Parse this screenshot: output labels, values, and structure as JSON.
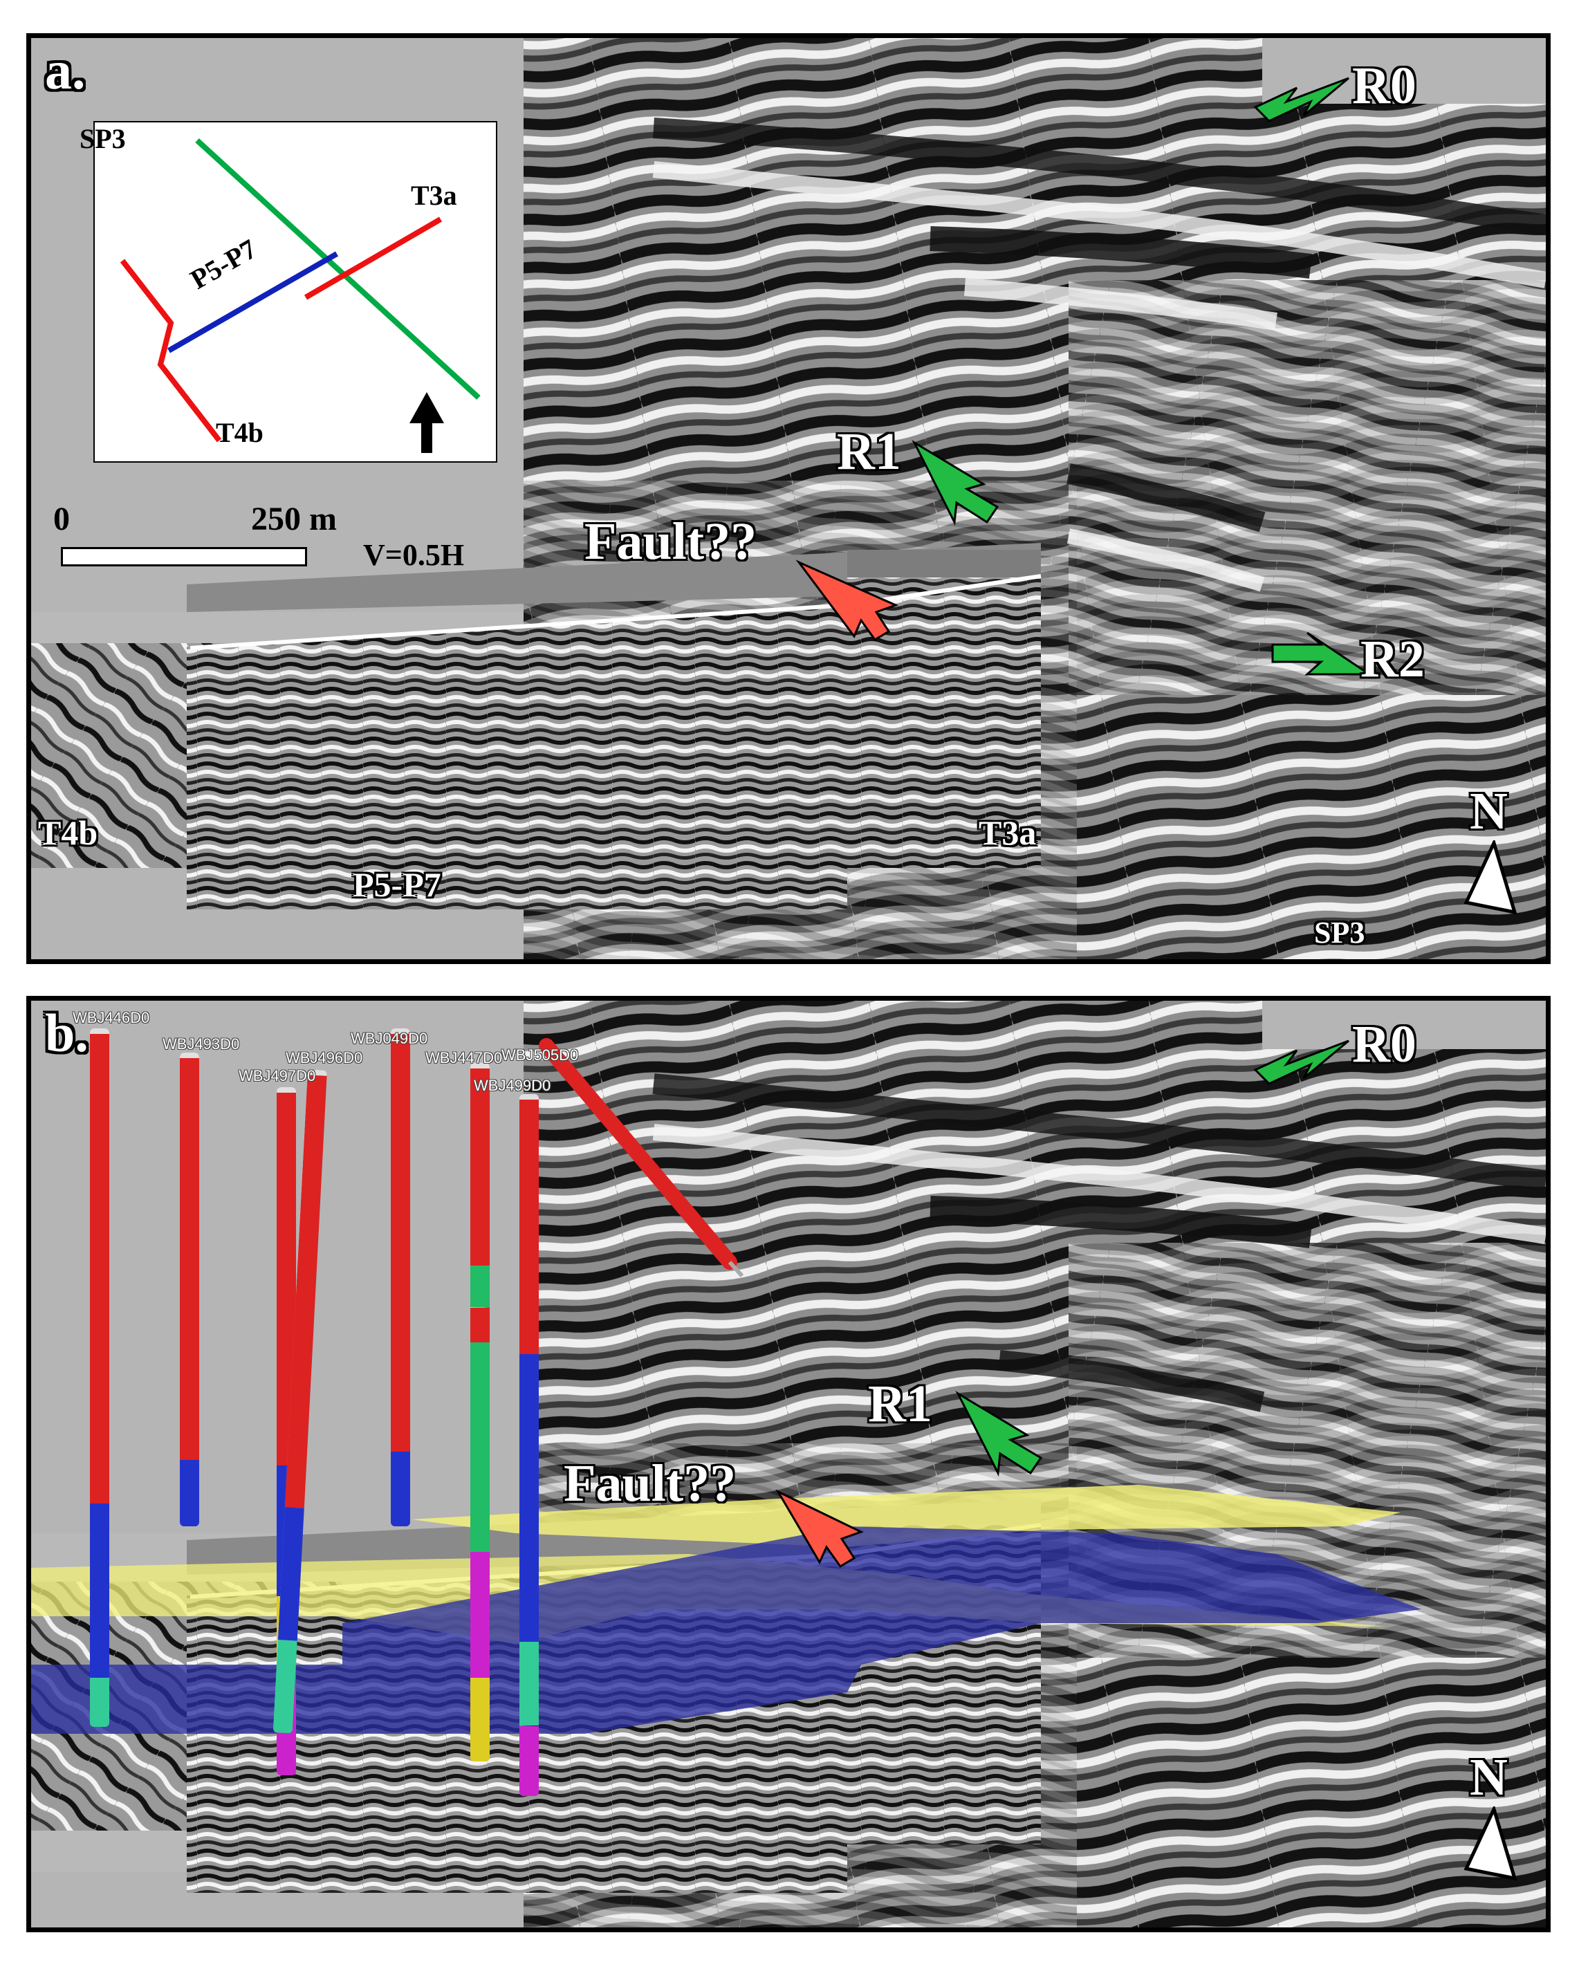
{
  "panels": {
    "a": {
      "label": "a.",
      "inset": {
        "lines": [
          {
            "name": "SP3",
            "color": "#00aa44"
          },
          {
            "name": "T3a",
            "color": "#ee1111"
          },
          {
            "name": "P5-P7",
            "color": "#1122bb"
          },
          {
            "name": "T4b",
            "color": "#ee1111"
          }
        ],
        "north_icon": "north-arrow-icon"
      },
      "scale": {
        "start": "0",
        "end": "250 m",
        "exaggeration": "V=0.5H"
      },
      "horizons": [
        "R0",
        "R1",
        "R2"
      ],
      "fault_label": "Fault??",
      "section_labels": {
        "t4b": "T4b",
        "p5p7": "P5-P7",
        "t3a": "T3a",
        "sp3": "SP3"
      },
      "north": "N"
    },
    "b": {
      "label": "b.",
      "horizons": [
        "R0",
        "R1"
      ],
      "fault_label": "Fault??",
      "wells": [
        "WBJ446D0",
        "WBJ493D0",
        "WBJ496D0",
        "WBJ497D0",
        "WBJ049D0",
        "WBJ447D0",
        "WBJ505D0",
        "WBJ499D0"
      ],
      "north": "N"
    }
  },
  "colors": {
    "horizon_arrow": "#22bb44",
    "fault_arrow": "#ff5544",
    "surface_yellow": "#f2f07a",
    "surface_blue": "#2a2ea0",
    "well_red": "#dd2222",
    "well_blue": "#2233cc",
    "well_green": "#22bb66"
  }
}
